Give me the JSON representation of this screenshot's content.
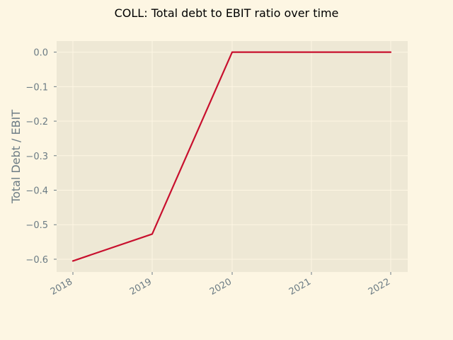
{
  "chart_data": {
    "type": "line",
    "title": "COLL: Total debt to EBIT ratio over time",
    "xlabel": "",
    "ylabel": "Total Debt / EBIT",
    "x": [
      "2018",
      "2019",
      "2020",
      "2021",
      "2022"
    ],
    "x_tick_labels": [
      "2018",
      "2019",
      "2020",
      "2021",
      "2022"
    ],
    "y_ticks": [
      0.0,
      -0.1,
      -0.2,
      -0.3,
      -0.4,
      -0.5,
      -0.6
    ],
    "y_tick_labels": [
      "0.0",
      "−0.1",
      "−0.2",
      "−0.3",
      "−0.4",
      "−0.5",
      "−0.6"
    ],
    "ylim": [
      -0.637,
      0.032
    ],
    "grid": true,
    "series": [
      {
        "values": [
          -0.605,
          -0.527,
          0.0,
          0.0,
          0.0
        ],
        "color": "#c8102e"
      }
    ],
    "colors": {
      "figure_background": "#fdf6e3",
      "plot_background": "#eee8d5",
      "grid": "#fdf6e3",
      "tick_text": "#6b7b84"
    }
  }
}
